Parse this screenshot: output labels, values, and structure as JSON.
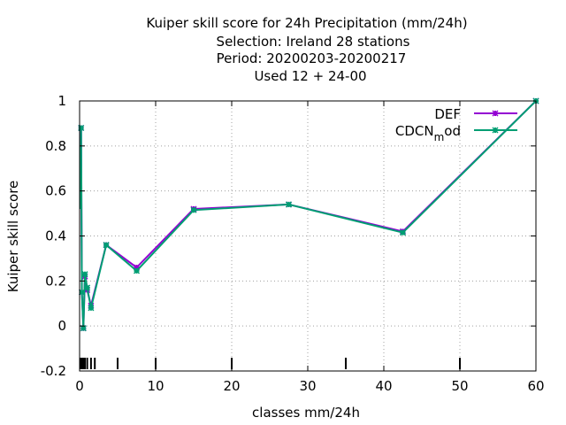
{
  "chart_data": {
    "type": "line",
    "title": [
      "Kuiper skill score  for 24h Precipitation (mm/24h)",
      "Selection: Ireland      28 stations",
      "Period: 20200203-20200217",
      "Used  12 + 24-00"
    ],
    "xlabel": "classes mm/24h",
    "ylabel": "Kuiper skill score",
    "xlim": [
      0,
      60
    ],
    "ylim": [
      -0.2,
      1
    ],
    "x_ticks": [
      0,
      10,
      20,
      30,
      40,
      50,
      60
    ],
    "x_tick_labels": [
      "0",
      "10",
      "20",
      "30",
      "40",
      "50",
      "60"
    ],
    "y_ticks": [
      -0.2,
      0,
      0.2,
      0.4,
      0.6,
      0.8,
      1
    ],
    "y_tick_labels": [
      "-0.2",
      "0",
      "0.2",
      "0.4",
      "0.6",
      "0.8",
      "1"
    ],
    "grid": true,
    "legend_position": "top-right",
    "class_marks": [
      0.1,
      0.2,
      0.3,
      0.5,
      0.7,
      1,
      1.5,
      2,
      5,
      10,
      20,
      35,
      50
    ],
    "series": [
      {
        "name": "DEF",
        "color": "#9400d3",
        "x": [
          0.1,
          0.2,
          0.3,
          0.5,
          0.7,
          1,
          1.5,
          3.5,
          7.5,
          15,
          27.5,
          42.5,
          60
        ],
        "y": [
          0.52,
          0.88,
          0.15,
          -0.01,
          0.22,
          0.16,
          0.09,
          0.36,
          0.26,
          0.52,
          0.54,
          0.42,
          1.0
        ]
      },
      {
        "name": "CDCN_mod",
        "color": "#009e73",
        "x": [
          0.1,
          0.2,
          0.3,
          0.5,
          0.7,
          1,
          1.5,
          3.5,
          7.5,
          15,
          27.5,
          42.5,
          60
        ],
        "y": [
          0.52,
          0.88,
          0.15,
          -0.01,
          0.23,
          0.17,
          0.08,
          0.36,
          0.245,
          0.515,
          0.54,
          0.415,
          1.0
        ]
      }
    ]
  },
  "legend": {
    "def_label": "DEF",
    "cdcn_label_main": "CDCN",
    "cdcn_label_sub": "m",
    "cdcn_label_tail": "od"
  }
}
